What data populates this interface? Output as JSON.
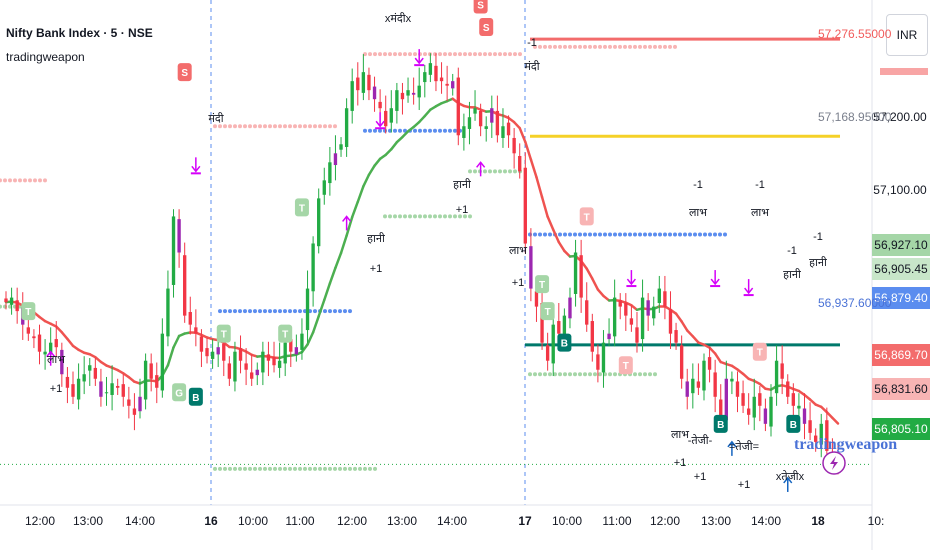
{
  "header": {
    "symbol_line": "Nifty Bank Index · 5 · NSE",
    "indicator": "tradingweapon"
  },
  "currency_button": "INR",
  "price_axis": [
    "57,200.00",
    "57,100.00"
  ],
  "price_tags": [
    {
      "label": "56,927.10",
      "bg": "#a5d6a7",
      "fg": "#131722"
    },
    {
      "label": "56,905.45",
      "bg": "#c8e6c9",
      "fg": "#131722"
    },
    {
      "label": "56,879.40",
      "bg": "#5b8def",
      "fg": "#ffffff"
    },
    {
      "label": "56,869.70",
      "bg": "#f36c6c",
      "fg": "#ffffff"
    },
    {
      "label": "56,831.60",
      "bg": "#f8b4b4",
      "fg": "#131722"
    },
    {
      "label": "56,805.10",
      "bg": "#22ab44",
      "fg": "#ffffff"
    }
  ],
  "level_labels": [
    {
      "text": "57,276.55000",
      "color": "#f25c5c"
    },
    {
      "text": "57,168.95000",
      "color": "#7a7f8c"
    },
    {
      "text": "56,937.60000",
      "color": "#4a72d6"
    }
  ],
  "time_axis": [
    {
      "label": "12:00",
      "day": false
    },
    {
      "label": "13:00",
      "day": false
    },
    {
      "label": "14:00",
      "day": false
    },
    {
      "label": "16",
      "day": true
    },
    {
      "label": "10:00",
      "day": false
    },
    {
      "label": "11:00",
      "day": false
    },
    {
      "label": "12:00",
      "day": false
    },
    {
      "label": "13:00",
      "day": false
    },
    {
      "label": "14:00",
      "day": false
    },
    {
      "label": "17",
      "day": true
    },
    {
      "label": "10:00",
      "day": false
    },
    {
      "label": "11:00",
      "day": false
    },
    {
      "label": "12:00",
      "day": false
    },
    {
      "label": "13:00",
      "day": false
    },
    {
      "label": "14:00",
      "day": false
    },
    {
      "label": "18",
      "day": true
    },
    {
      "label": "10:",
      "day": false
    }
  ],
  "annotations": [
    {
      "text": "लाभ"
    },
    {
      "text": "+1"
    },
    {
      "text": "मंदी"
    },
    {
      "text": "xमंदीx"
    },
    {
      "text": "हानी"
    },
    {
      "text": "+1"
    },
    {
      "text": "हानी"
    },
    {
      "text": "+1"
    },
    {
      "text": "-1"
    },
    {
      "text": "मंदी"
    },
    {
      "text": "लाभ"
    },
    {
      "text": "+1"
    },
    {
      "text": "-1"
    },
    {
      "text": "लाभ"
    },
    {
      "text": "-1"
    },
    {
      "text": "लाभ"
    },
    {
      "text": "-1"
    },
    {
      "text": "हानी"
    },
    {
      "text": "-1"
    },
    {
      "text": "हानी"
    },
    {
      "text": "लाभ"
    },
    {
      "text": "+1"
    },
    {
      "text": "-तेजी-"
    },
    {
      "text": "+1"
    },
    {
      "text": "=तेजी="
    },
    {
      "text": "+1"
    },
    {
      "text": "xतेजीx"
    }
  ],
  "watermark": "tradingweapon",
  "colors": {
    "up": "#22ab44",
    "down": "#f23645",
    "ema_up": "#4caf50",
    "ema_down": "#ef5350",
    "resistance": "#f36c6c",
    "yellow_level": "#f5d128",
    "support_line": "#00796b",
    "blue_dots": "#5b8def",
    "green_dots": "#a5d6a7",
    "pink_dots": "#f8b4b4"
  },
  "chart_data": {
    "type": "candlestick",
    "title": "Nifty Bank Index · 5 · NSE",
    "y_axis_ticks": [
      57200,
      57100
    ],
    "ylim": [
      56760,
      57320
    ],
    "levels": [
      {
        "price": 57276.55,
        "color": "#f36c6c"
      },
      {
        "price": 57168.95,
        "color": "#f5d128"
      },
      {
        "price": 56937.6,
        "color": "#00796b"
      }
    ],
    "last_price": 56805.1,
    "close_path": [
      56985,
      56990,
      56975,
      56960,
      56950,
      56945,
      56930,
      56930,
      56940,
      56935,
      56905,
      56890,
      56880,
      56900,
      56905,
      56915,
      56900,
      56880,
      56885,
      56895,
      56890,
      56880,
      56870,
      56860,
      56880,
      56920,
      56900,
      56890,
      56950,
      57000,
      57080,
      57040,
      56970,
      56960,
      56950,
      56930,
      56925,
      56930,
      56935,
      56920,
      56900,
      56930,
      56920,
      56910,
      56900,
      56910,
      56930,
      56920,
      56915,
      56920,
      56940,
      56930,
      56935,
      56950,
      57000,
      57050,
      57100,
      57120,
      57140,
      57150,
      57160,
      57200,
      57230,
      57220,
      57240,
      57220,
      57210,
      57200,
      57180,
      57200,
      57220,
      57210,
      57220,
      57215,
      57225,
      57240,
      57250,
      57230,
      57230,
      57225,
      57230,
      57170,
      57180,
      57190,
      57200,
      57180,
      57180,
      57200,
      57170,
      57180,
      57170,
      57150,
      57130,
      57050,
      57000,
      56980,
      56940,
      56920,
      56960,
      56950,
      56970,
      56990,
      57040,
      56990,
      56960,
      56930,
      56910,
      56940,
      56950,
      56990,
      56980,
      56970,
      56960,
      56940,
      56990,
      56970,
      56980,
      57000,
      56980,
      56950,
      56940,
      56900,
      56880,
      56900,
      56890,
      56920,
      56910,
      56880,
      56850,
      56900,
      56900,
      56880,
      56870,
      56860,
      56880,
      56870,
      56850,
      56880,
      56920,
      56900,
      56880,
      56870,
      56870,
      56850,
      56840,
      56830,
      56850,
      56820,
      56810,
      56805
    ]
  }
}
